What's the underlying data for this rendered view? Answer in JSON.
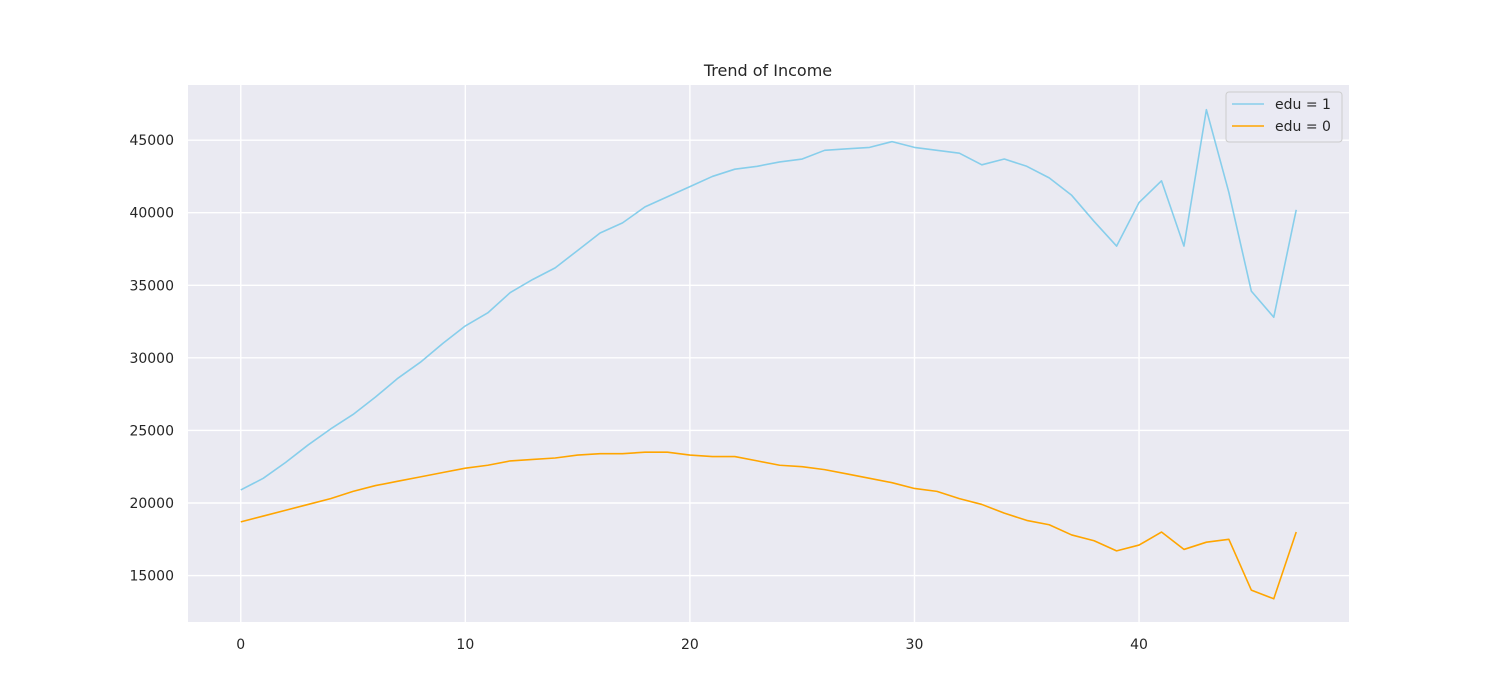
{
  "chart_data": {
    "type": "line",
    "title": "Trend of Income",
    "xlabel": "",
    "ylabel": "",
    "xlim": [
      -2.35,
      49.35
    ],
    "ylim": [
      11800,
      48800
    ],
    "xticks": [
      0,
      10,
      20,
      30,
      40
    ],
    "yticks": [
      15000,
      20000,
      25000,
      30000,
      35000,
      40000,
      45000
    ],
    "grid": true,
    "background": "#eaeaf2",
    "legend_position": "top-right",
    "x": [
      0,
      1,
      2,
      3,
      4,
      5,
      6,
      7,
      8,
      9,
      10,
      11,
      12,
      13,
      14,
      15,
      16,
      17,
      18,
      19,
      20,
      21,
      22,
      23,
      24,
      25,
      26,
      27,
      28,
      29,
      30,
      31,
      32,
      33,
      34,
      35,
      36,
      37,
      38,
      39,
      40,
      41,
      42,
      43,
      44,
      45,
      46,
      47
    ],
    "series": [
      {
        "name": "edu = 1",
        "color": "#87ceeb",
        "values": [
          20900,
          21700,
          22800,
          24000,
          25100,
          26100,
          27300,
          28600,
          29700,
          31000,
          32200,
          33100,
          34500,
          35400,
          36200,
          37400,
          38600,
          39300,
          40400,
          41100,
          41800,
          42500,
          43000,
          43200,
          43500,
          43700,
          44300,
          44400,
          44500,
          44900,
          44500,
          44300,
          44100,
          43300,
          43700,
          43200,
          42400,
          41200,
          39400,
          37700,
          40700,
          42200,
          37700,
          47100,
          41400,
          34600,
          32800,
          40200
        ]
      },
      {
        "name": "edu = 0",
        "color": "#ffa500",
        "values": [
          18700,
          19100,
          19500,
          19900,
          20300,
          20800,
          21200,
          21500,
          21800,
          22100,
          22400,
          22600,
          22900,
          23000,
          23100,
          23300,
          23400,
          23400,
          23500,
          23500,
          23300,
          23200,
          23200,
          22900,
          22600,
          22500,
          22300,
          22000,
          21700,
          21400,
          21000,
          20800,
          20300,
          19900,
          19300,
          18800,
          18500,
          17800,
          17400,
          16700,
          17100,
          18000,
          16800,
          17300,
          17500,
          14000,
          13400,
          18000
        ]
      }
    ]
  }
}
